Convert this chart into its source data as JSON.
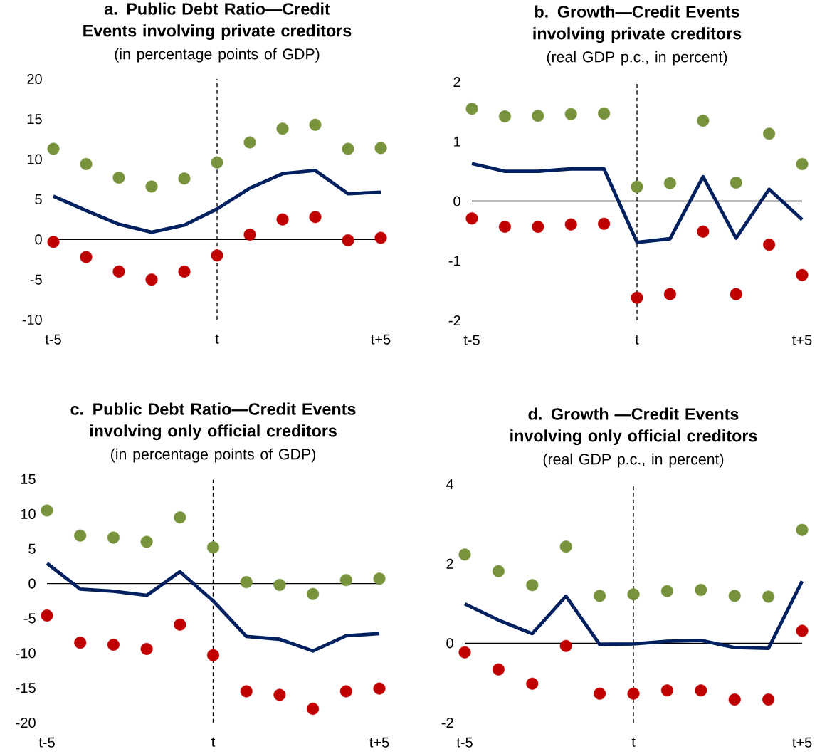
{
  "chart_data": [
    {
      "type": "line",
      "title": "a. Public Debt Ratio—Credit Events involving private creditors",
      "subtitle": "(in percentage points of GDP)",
      "categories": [
        "t-5",
        null,
        null,
        null,
        null,
        "t",
        null,
        null,
        null,
        null,
        "t+5"
      ],
      "ylim": [
        -10,
        20
      ],
      "yticks": [
        -10,
        -5,
        0,
        5,
        10,
        15,
        20
      ],
      "series": [
        {
          "color": "#002060",
          "marker": "none",
          "line_style": "solid",
          "values": [
            5.4,
            3.6,
            1.9,
            0.9,
            1.8,
            3.8,
            6.4,
            8.2,
            8.6,
            5.7,
            5.9
          ]
        },
        {
          "type": "scatter",
          "color": "#77933c",
          "marker": "circle",
          "values": [
            11.3,
            9.4,
            7.7,
            6.6,
            7.6,
            9.6,
            12.1,
            13.8,
            14.3,
            11.3,
            11.4
          ]
        },
        {
          "type": "scatter",
          "color": "#c00000",
          "marker": "circle",
          "values": [
            -0.3,
            -2.2,
            -4.0,
            -5.0,
            -4.0,
            -2.0,
            0.6,
            2.5,
            2.8,
            -0.1,
            0.2
          ]
        }
      ],
      "ref_lines": [
        {
          "axis": "x",
          "value": "t",
          "line_style": "dashed",
          "color": "#000000"
        },
        {
          "axis": "y",
          "value": 0,
          "line_style": "solid",
          "color": "#000000"
        }
      ]
    },
    {
      "type": "line",
      "title": "b. Growth—Credit Events involving private creditors",
      "subtitle": "(real GDP p.c., in percent)",
      "categories": [
        "t-5",
        null,
        null,
        null,
        null,
        "t",
        null,
        null,
        null,
        null,
        "t+5"
      ],
      "ylim": [
        -2,
        2
      ],
      "yticks": [
        -2,
        -1,
        0,
        1,
        2
      ],
      "series": [
        {
          "color": "#002060",
          "marker": "none",
          "line_style": "solid",
          "values": [
            0.63,
            0.5,
            0.5,
            0.54,
            0.54,
            -0.69,
            -0.63,
            0.41,
            -0.62,
            0.2,
            -0.31
          ]
        },
        {
          "type": "scatter",
          "color": "#77933c",
          "marker": "circle",
          "values": [
            1.55,
            1.42,
            1.43,
            1.46,
            1.47,
            0.24,
            0.3,
            1.35,
            0.31,
            1.13,
            0.62
          ]
        },
        {
          "type": "scatter",
          "color": "#c00000",
          "marker": "circle",
          "values": [
            -0.29,
            -0.43,
            -0.43,
            -0.39,
            -0.38,
            -1.62,
            -1.56,
            -0.51,
            -1.56,
            -0.73,
            -1.24
          ]
        }
      ],
      "ref_lines": [
        {
          "axis": "x",
          "value": "t",
          "line_style": "dashed",
          "color": "#000000"
        },
        {
          "axis": "y",
          "value": 0,
          "line_style": "solid",
          "color": "#000000"
        }
      ]
    },
    {
      "type": "line",
      "title": "c. Public Debt Ratio—Credit Events involving only official creditors",
      "subtitle": "(in percentage points of GDP)",
      "categories": [
        "t-5",
        null,
        null,
        null,
        null,
        "t",
        null,
        null,
        null,
        null,
        "t+5"
      ],
      "ylim": [
        -20,
        15
      ],
      "yticks": [
        -20,
        -15,
        -10,
        -5,
        0,
        5,
        10,
        15
      ],
      "series": [
        {
          "color": "#002060",
          "marker": "none",
          "line_style": "solid",
          "values": [
            2.9,
            -0.8,
            -1.1,
            -1.7,
            1.7,
            -2.5,
            -7.6,
            -8.0,
            -9.7,
            -7.5,
            -7.2
          ]
        },
        {
          "type": "scatter",
          "color": "#77933c",
          "marker": "circle",
          "values": [
            10.5,
            6.9,
            6.6,
            6.0,
            9.5,
            5.2,
            0.2,
            -0.2,
            -1.5,
            0.5,
            0.7
          ]
        },
        {
          "type": "scatter",
          "color": "#c00000",
          "marker": "circle",
          "values": [
            -4.6,
            -8.5,
            -8.8,
            -9.4,
            -5.9,
            -10.3,
            -15.5,
            -16.0,
            -18.0,
            -15.5,
            -15.1
          ]
        }
      ],
      "ref_lines": [
        {
          "axis": "x",
          "value": "t",
          "line_style": "dashed",
          "color": "#000000"
        },
        {
          "axis": "y",
          "value": 0,
          "line_style": "solid",
          "color": "#000000"
        }
      ]
    },
    {
      "type": "line",
      "title": "d. Growth —Credit Events involving only official creditors",
      "subtitle": "(real GDP p.c., in percent)",
      "categories": [
        "t-5",
        null,
        null,
        null,
        null,
        "t",
        null,
        null,
        null,
        null,
        "t+5"
      ],
      "ylim": [
        -2,
        4
      ],
      "yticks": [
        -2,
        0,
        2,
        4
      ],
      "series": [
        {
          "color": "#002060",
          "marker": "none",
          "line_style": "solid",
          "values": [
            0.99,
            0.58,
            0.24,
            1.18,
            -0.03,
            -0.02,
            0.05,
            0.07,
            -0.11,
            -0.13,
            1.56
          ]
        },
        {
          "type": "scatter",
          "color": "#77933c",
          "marker": "circle",
          "values": [
            2.23,
            1.81,
            1.46,
            2.43,
            1.19,
            1.23,
            1.31,
            1.34,
            1.19,
            1.17,
            2.85
          ]
        },
        {
          "type": "scatter",
          "color": "#c00000",
          "marker": "circle",
          "values": [
            -0.23,
            -0.66,
            -1.02,
            -0.07,
            -1.27,
            -1.27,
            -1.19,
            -1.19,
            -1.42,
            -1.42,
            0.31
          ]
        }
      ],
      "ref_lines": [
        {
          "axis": "x",
          "value": "t",
          "line_style": "dashed",
          "color": "#000000"
        },
        {
          "axis": "y",
          "value": 0,
          "line_style": "solid",
          "color": "#000000"
        }
      ]
    }
  ]
}
